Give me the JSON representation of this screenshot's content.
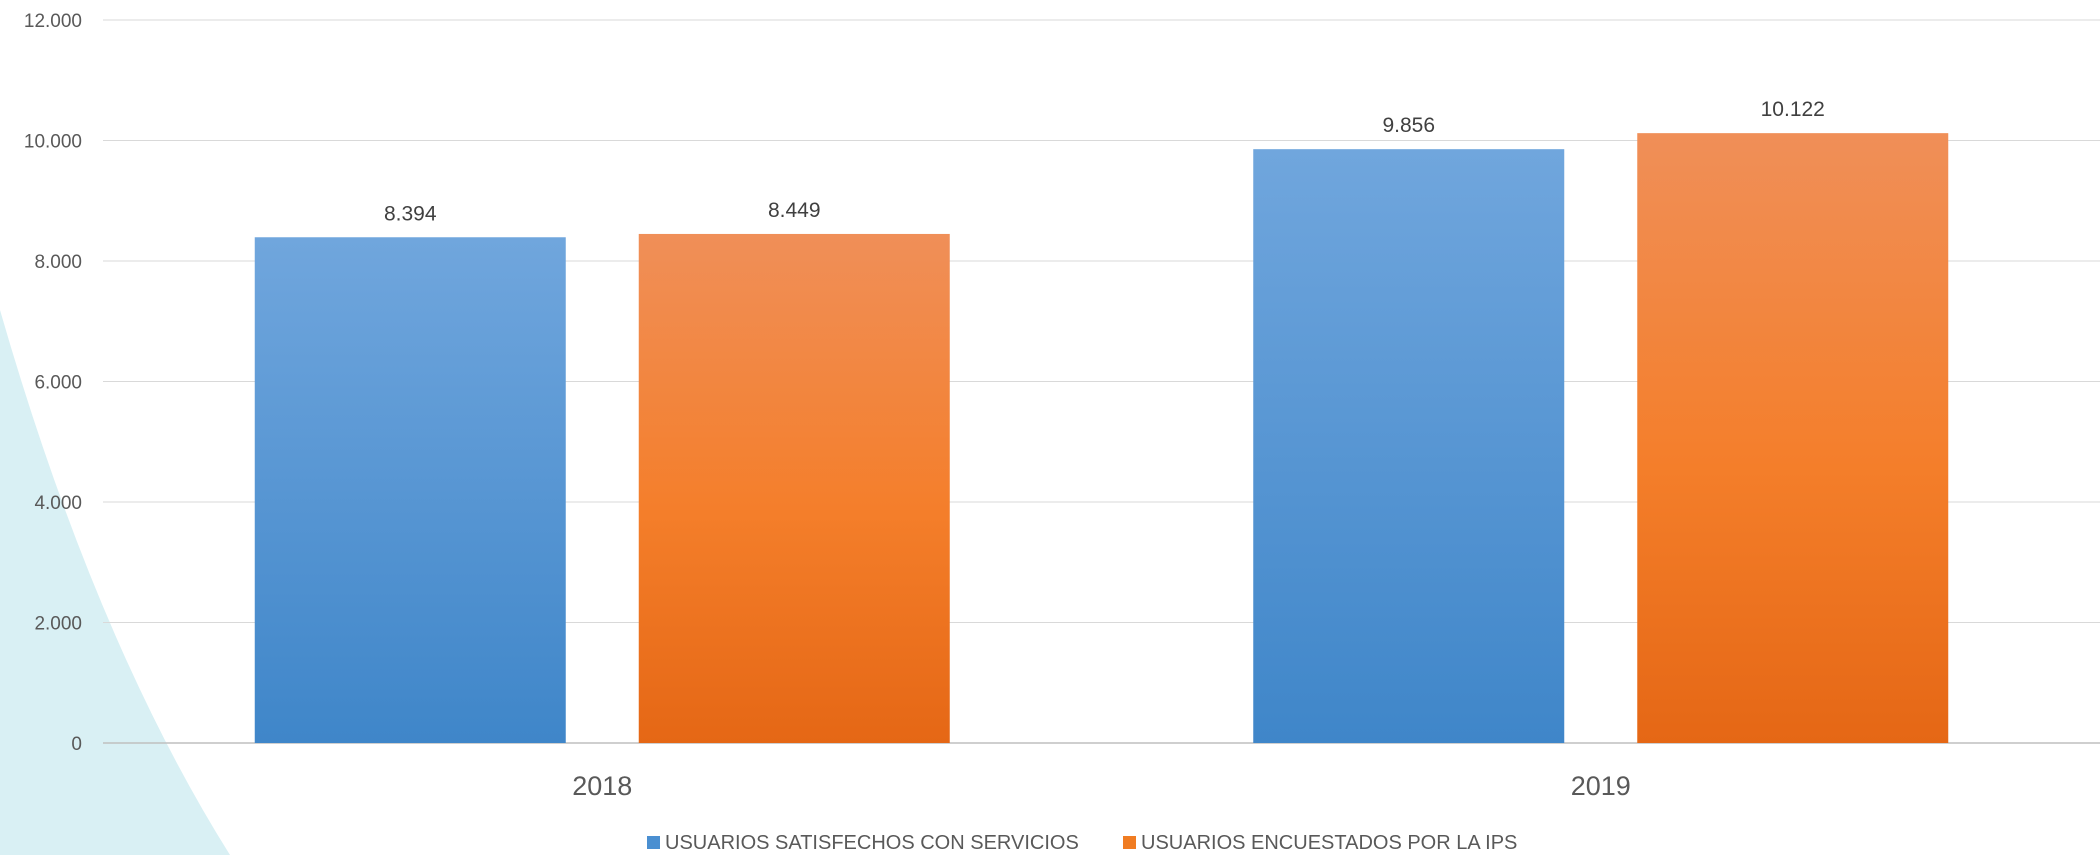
{
  "chart_data": {
    "type": "bar",
    "title": "",
    "xlabel": "",
    "ylabel": "",
    "categories": [
      "2018",
      "2019"
    ],
    "series": [
      {
        "name": "USUARIOS SATISFECHOS CON SERVICIOS",
        "values": [
          8394,
          9856
        ],
        "labels": [
          "8.394",
          "9.856"
        ],
        "color": "#4a8fd1"
      },
      {
        "name": "USUARIOS ENCUESTADOS POR LA IPS",
        "values": [
          8449,
          10122
        ],
        "labels": [
          "8.449",
          "10.122"
        ],
        "color": "#f07c22"
      }
    ],
    "ylim": [
      0,
      12000
    ],
    "yticks": [
      0,
      2000,
      4000,
      6000,
      8000,
      10000,
      12000
    ],
    "ytick_labels": [
      "0",
      "2.000",
      "4.000",
      "6.000",
      "8.000",
      "10.000",
      "12.000"
    ],
    "grid": true,
    "legend_position": "bottom-center",
    "background_accent_color": "#d9f0f4"
  }
}
